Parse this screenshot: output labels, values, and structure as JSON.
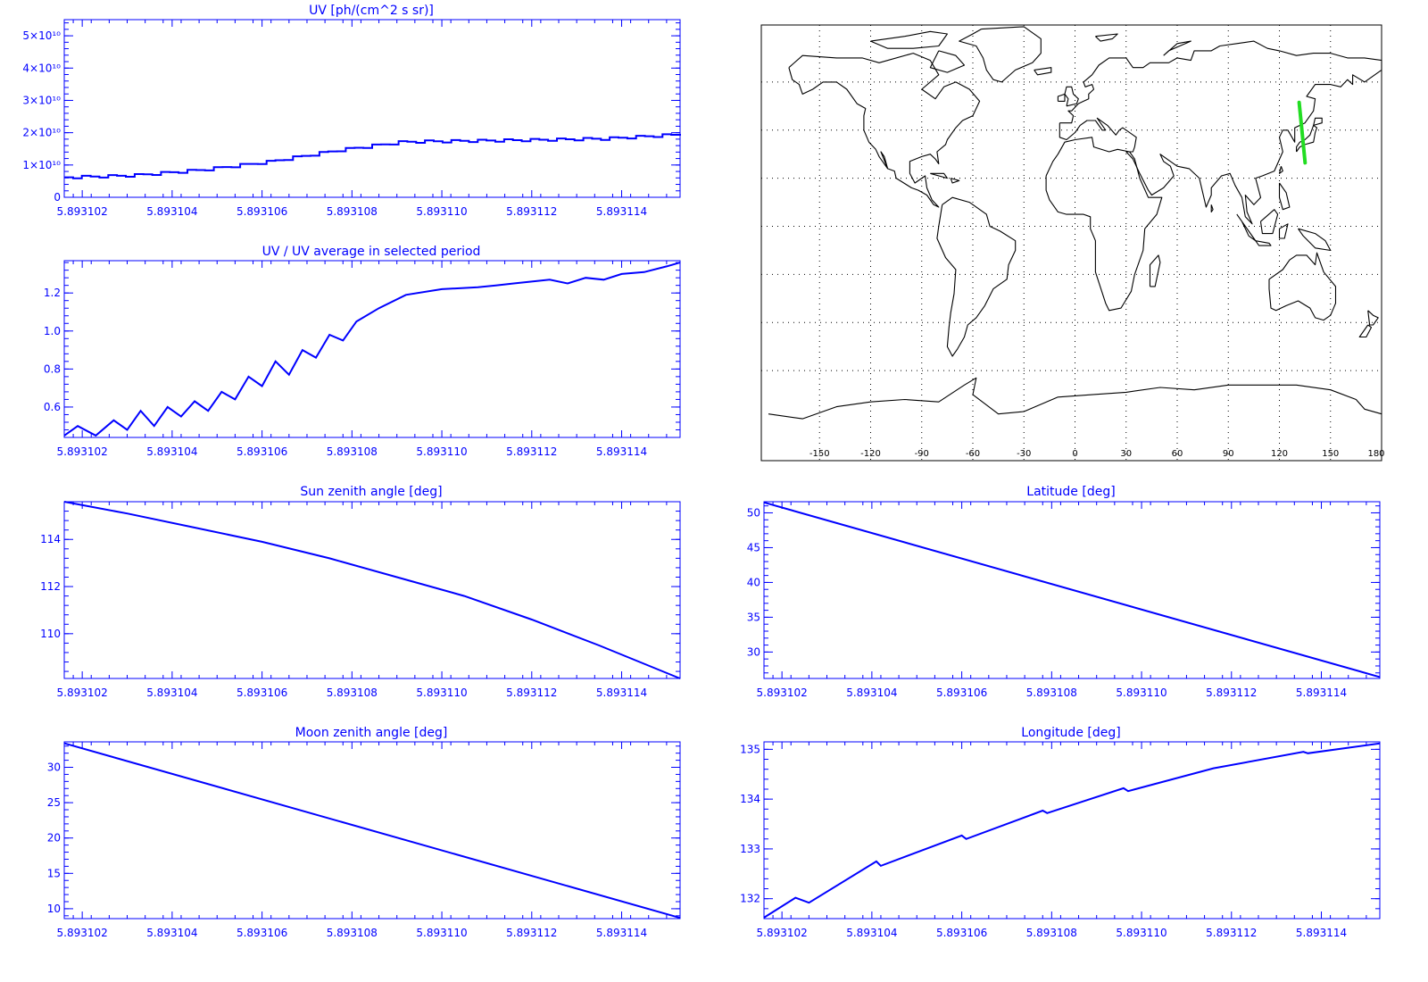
{
  "colors": {
    "axis": "#0000ff",
    "series": "#0000ff",
    "map_coast": "#000000",
    "map_grid": "#000000",
    "track": "#22dd22",
    "map_label": "#000000"
  },
  "x_ticks": [
    "5.893102",
    "5.893104",
    "5.893106",
    "5.893108",
    "5.893110",
    "5.893112",
    "5.893114"
  ],
  "chart_data": [
    {
      "id": "uv",
      "type": "line",
      "step": true,
      "title": "UV [ph/(cm^2 s sr)]",
      "xlim": [
        5.8931016,
        5.8931153
      ],
      "ylim": [
        0,
        55000000000.0
      ],
      "yticks": [
        0,
        10000000000.0,
        20000000000.0,
        30000000000.0,
        40000000000.0,
        50000000000.0
      ],
      "ytick_labels": [
        "0",
        "1×10¹⁰",
        "2×10¹⁰",
        "3×10¹⁰",
        "4×10¹⁰",
        "5×10¹⁰"
      ],
      "x": [
        5.8931016,
        5.8931031,
        5.8931046,
        5.8931061,
        5.8931076,
        5.8931091,
        5.8931106,
        5.8931121,
        5.8931136,
        5.8931153
      ],
      "y": [
        6200000000.0,
        6800000000.0,
        8500000000.0,
        11000000000.0,
        14500000000.0,
        17200000000.0,
        17500000000.0,
        17800000000.0,
        18200000000.0,
        19500000000.0
      ]
    },
    {
      "id": "uv_ratio",
      "type": "line",
      "title": "UV / UV average in selected period",
      "xlim": [
        5.8931016,
        5.8931153
      ],
      "ylim": [
        0.44,
        1.37
      ],
      "yticks": [
        0.6,
        0.8,
        1.0,
        1.2
      ],
      "ytick_labels": [
        "0.6",
        "0.8",
        "1.0",
        "1.2"
      ],
      "x": [
        5.8931016,
        5.8931019,
        5.8931023,
        5.8931027,
        5.893103,
        5.8931033,
        5.8931036,
        5.8931039,
        5.8931042,
        5.8931045,
        5.8931048,
        5.8931051,
        5.8931054,
        5.8931057,
        5.893106,
        5.8931063,
        5.8931066,
        5.8931069,
        5.8931072,
        5.8931075,
        5.8931078,
        5.8931081,
        5.8931086,
        5.8931092,
        5.89311,
        5.8931108,
        5.8931112,
        5.8931116,
        5.893112,
        5.8931124,
        5.8931128,
        5.8931132,
        5.8931136,
        5.893114,
        5.8931145,
        5.893115,
        5.8931153
      ],
      "y": [
        0.45,
        0.5,
        0.45,
        0.53,
        0.48,
        0.58,
        0.5,
        0.6,
        0.55,
        0.63,
        0.58,
        0.68,
        0.64,
        0.76,
        0.71,
        0.84,
        0.77,
        0.9,
        0.86,
        0.98,
        0.95,
        1.05,
        1.12,
        1.19,
        1.22,
        1.23,
        1.24,
        1.25,
        1.26,
        1.27,
        1.25,
        1.28,
        1.27,
        1.3,
        1.31,
        1.34,
        1.36
      ]
    },
    {
      "id": "sun_zenith",
      "type": "line",
      "title": "Sun zenith angle [deg]",
      "xlim": [
        5.8931016,
        5.8931153
      ],
      "ylim": [
        108.1,
        115.6
      ],
      "yticks": [
        110,
        112,
        114
      ],
      "ytick_labels": [
        "110",
        "112",
        "114"
      ],
      "x": [
        5.8931016,
        5.893103,
        5.8931045,
        5.893106,
        5.8931075,
        5.893109,
        5.8931105,
        5.893112,
        5.8931135,
        5.8931153
      ],
      "y": [
        115.6,
        115.1,
        114.5,
        113.9,
        113.2,
        112.4,
        111.6,
        110.6,
        109.5,
        108.1
      ]
    },
    {
      "id": "moon_zenith",
      "type": "line",
      "title": "Moon zenith angle [deg]",
      "xlim": [
        5.8931016,
        5.8931153
      ],
      "ylim": [
        8.6,
        33.6
      ],
      "yticks": [
        10,
        15,
        20,
        25,
        30
      ],
      "ytick_labels": [
        "10",
        "15",
        "20",
        "25",
        "30"
      ],
      "x": [
        5.8931016,
        5.8931153
      ],
      "y": [
        33.4,
        8.7
      ]
    },
    {
      "id": "latitude",
      "type": "line",
      "title": "Latitude [deg]",
      "xlim": [
        5.8931016,
        5.8931153
      ],
      "ylim": [
        26.2,
        51.6
      ],
      "yticks": [
        30,
        35,
        40,
        45,
        50
      ],
      "ytick_labels": [
        "30",
        "35",
        "40",
        "45",
        "50"
      ],
      "x": [
        5.8931016,
        5.8931153
      ],
      "y": [
        51.5,
        26.4
      ]
    },
    {
      "id": "longitude",
      "type": "line",
      "title": "Longitude [deg]",
      "xlim": [
        5.8931016,
        5.8931153
      ],
      "ylim": [
        131.6,
        135.15
      ],
      "yticks": [
        132,
        133,
        134,
        135
      ],
      "ytick_labels": [
        "132",
        "133",
        "134",
        "135"
      ],
      "x": [
        5.8931016,
        5.8931023,
        5.8931026,
        5.8931041,
        5.8931042,
        5.893106,
        5.8931061,
        5.8931078,
        5.8931079,
        5.8931096,
        5.8931097,
        5.8931116,
        5.8931136,
        5.8931137,
        5.8931153
      ],
      "y": [
        131.62,
        132.02,
        131.92,
        132.75,
        132.66,
        133.27,
        133.2,
        133.77,
        133.72,
        134.22,
        134.16,
        134.62,
        134.95,
        134.92,
        135.12
      ]
    }
  ],
  "map": {
    "type": "map",
    "projection": "equirectangular",
    "lon_range": [
      -180,
      180
    ],
    "lat_range": [
      -90,
      90
    ],
    "lon_ticks": [
      -150,
      -120,
      -90,
      -60,
      -30,
      0,
      30,
      60,
      90,
      120,
      150,
      180
    ],
    "lon_tick_labels": [
      "-150",
      "-120",
      "-90",
      "-60",
      "-30",
      "0",
      "30",
      "60",
      "90",
      "120",
      "150",
      "180"
    ],
    "grid": true,
    "track": [
      [
        131.6,
        51.5
      ],
      [
        135.1,
        26.4
      ]
    ]
  }
}
